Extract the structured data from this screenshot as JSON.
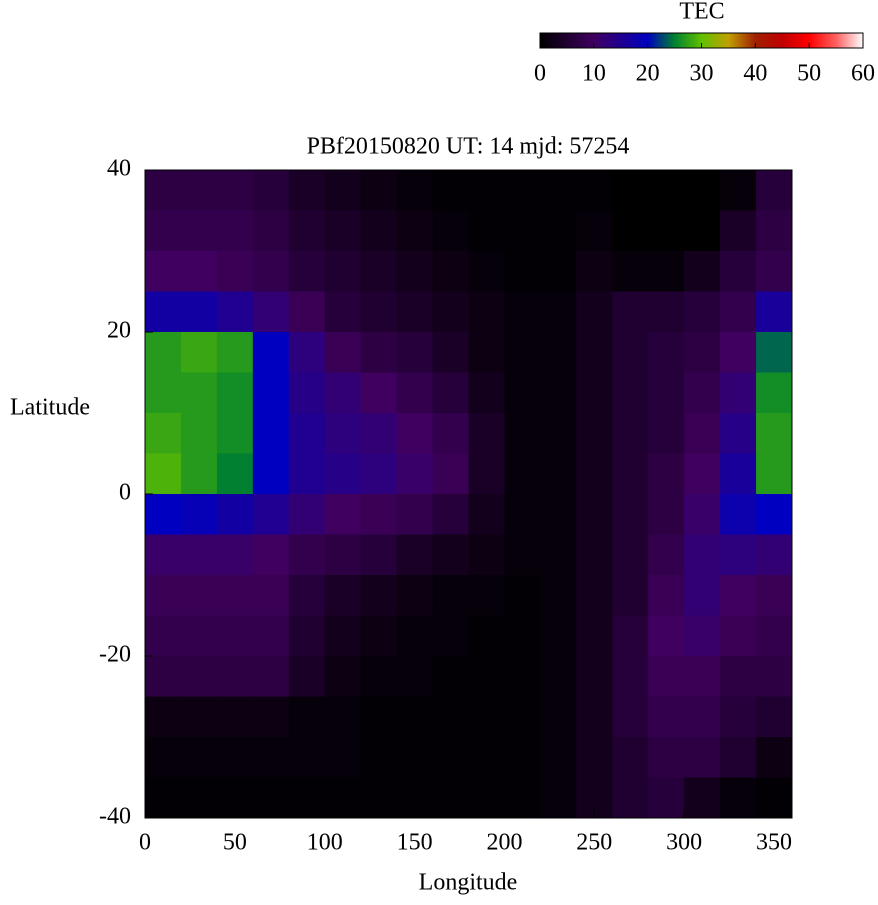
{
  "chart_data": {
    "type": "heatmap",
    "title": "PBf20150820  UT: 14  mjd: 57254",
    "xlabel": "Longitude",
    "ylabel": "Latitude",
    "colorbar_label": "TEC",
    "clim": [
      0,
      60
    ],
    "cticks": [
      0,
      10,
      20,
      30,
      40,
      50,
      60
    ],
    "colormap": [
      "#000000",
      "#200030",
      "#400060",
      "#200090",
      "#0000c0",
      "#008030",
      "#60c000",
      "#c0a000",
      "#a02000",
      "#c00000",
      "#ff0000",
      "#ff6060",
      "#ffffff"
    ],
    "xlim": [
      0,
      360
    ],
    "xticks": [
      0,
      50,
      100,
      150,
      200,
      250,
      300,
      350
    ],
    "ylim": [
      -40,
      40
    ],
    "yticks": [
      -40,
      -20,
      0,
      20,
      40
    ],
    "x": [
      10,
      30,
      50,
      70,
      90,
      110,
      130,
      150,
      170,
      190,
      210,
      230,
      250,
      270,
      290,
      310,
      330,
      350
    ],
    "y": [
      37.5,
      32.5,
      27.5,
      22.5,
      17.5,
      12.5,
      7.5,
      2.5,
      -2.5,
      -7.5,
      -12.5,
      -17.5,
      -22.5,
      -27.5,
      -32.5,
      -37.5
    ],
    "z": [
      [
        7,
        7,
        7,
        6,
        4,
        3,
        2,
        1,
        0.5,
        0.5,
        0.5,
        0.5,
        0.5,
        0,
        0,
        0,
        1,
        6
      ],
      [
        8,
        8,
        8,
        7,
        5,
        4,
        3,
        2,
        1,
        0.5,
        0.5,
        0.5,
        1,
        0,
        0,
        0,
        4,
        7
      ],
      [
        10,
        10,
        9,
        8,
        6,
        5,
        4,
        3,
        2,
        1,
        0.5,
        0.5,
        2,
        1,
        1,
        3,
        6,
        8
      ],
      [
        17,
        17,
        15,
        12,
        9,
        6,
        5,
        4,
        3,
        2,
        1,
        1,
        3,
        5,
        5,
        6,
        8,
        16
      ],
      [
        27,
        28,
        27,
        20,
        13,
        9,
        7,
        6,
        4,
        2,
        1,
        1,
        3,
        5,
        6,
        7,
        10,
        24
      ],
      [
        27,
        27,
        26,
        20,
        14,
        12,
        10,
        8,
        6,
        3,
        1,
        1,
        3,
        5,
        6,
        8,
        12,
        26
      ],
      [
        28,
        27,
        26,
        20,
        15,
        13,
        12,
        10,
        8,
        4,
        1,
        1,
        3,
        5,
        6,
        9,
        14,
        27
      ],
      [
        29,
        27,
        25,
        20,
        15,
        14,
        13,
        11,
        9,
        4,
        1,
        1,
        3,
        5,
        7,
        10,
        16,
        27
      ],
      [
        20,
        19,
        17,
        15,
        12,
        10,
        9,
        8,
        6,
        3,
        1,
        1,
        3,
        5,
        7,
        11,
        18,
        20
      ],
      [
        11,
        11,
        11,
        10,
        8,
        7,
        6,
        4,
        3,
        2,
        1,
        1,
        3,
        5,
        8,
        12,
        13,
        12
      ],
      [
        9,
        9,
        9,
        9,
        6,
        4,
        3,
        2,
        1,
        1,
        0.5,
        1,
        3,
        5,
        9,
        12,
        10,
        9
      ],
      [
        8,
        8,
        8,
        8,
        5,
        3,
        2,
        1,
        1,
        0.5,
        0.5,
        1,
        3,
        6,
        10,
        11,
        9,
        8
      ],
      [
        7,
        7,
        7,
        7,
        4,
        2,
        1,
        1,
        0.5,
        0.5,
        0.5,
        1,
        3,
        6,
        9,
        9,
        7,
        7
      ],
      [
        2,
        2,
        2,
        2,
        1,
        1,
        0.5,
        0.5,
        0.5,
        0.5,
        0.5,
        1,
        3,
        6,
        8,
        8,
        6,
        5
      ],
      [
        1,
        1,
        1,
        1,
        1,
        1,
        0.5,
        0.5,
        0.5,
        0.5,
        0.5,
        1,
        3,
        5,
        7,
        7,
        5,
        2
      ],
      [
        0.5,
        0.5,
        0.5,
        0.5,
        0.5,
        0.5,
        0.5,
        0.5,
        0.5,
        0.5,
        0.5,
        1,
        3,
        5,
        6,
        3,
        1,
        0.5
      ]
    ]
  }
}
